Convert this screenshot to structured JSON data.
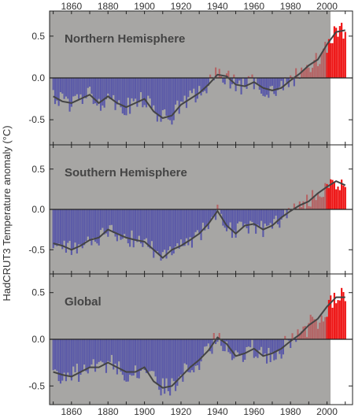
{
  "chart_data": {
    "type": "bar",
    "ylabel": "HadCRUT3 Temperature anomaly (°C)",
    "x_ticks": [
      "1860",
      "1880",
      "1900",
      "1920",
      "1940",
      "1960",
      "1980",
      "2000"
    ],
    "xlim": [
      1848,
      2014
    ],
    "colors": {
      "cold": "#5b5aa8",
      "warm": "#b46566",
      "recent": "#ee1111",
      "plot_bg": "#a7a6a4",
      "smooth": "#444444"
    },
    "panels": [
      {
        "title": "Northern Hemisphere",
        "ylim": [
          -0.8,
          0.8
        ],
        "yticks": [
          "0.5",
          "0.0",
          "-0.5"
        ],
        "ytick_values": [
          0.5,
          0.0,
          -0.5
        ],
        "smooth": [
          [
            1850,
            -0.22
          ],
          [
            1855,
            -0.28
          ],
          [
            1860,
            -0.3
          ],
          [
            1865,
            -0.25
          ],
          [
            1870,
            -0.2
          ],
          [
            1875,
            -0.3
          ],
          [
            1880,
            -0.22
          ],
          [
            1885,
            -0.3
          ],
          [
            1890,
            -0.35
          ],
          [
            1895,
            -0.3
          ],
          [
            1900,
            -0.25
          ],
          [
            1905,
            -0.4
          ],
          [
            1910,
            -0.48
          ],
          [
            1915,
            -0.45
          ],
          [
            1920,
            -0.32
          ],
          [
            1925,
            -0.25
          ],
          [
            1930,
            -0.18
          ],
          [
            1935,
            -0.08
          ],
          [
            1940,
            0.04
          ],
          [
            1945,
            0.02
          ],
          [
            1950,
            -0.08
          ],
          [
            1955,
            -0.1
          ],
          [
            1960,
            -0.05
          ],
          [
            1965,
            -0.12
          ],
          [
            1970,
            -0.15
          ],
          [
            1975,
            -0.12
          ],
          [
            1980,
            -0.03
          ],
          [
            1985,
            0.05
          ],
          [
            1990,
            0.15
          ],
          [
            1995,
            0.22
          ],
          [
            2000,
            0.4
          ],
          [
            2005,
            0.55
          ],
          [
            2010,
            0.57
          ]
        ]
      },
      {
        "title": "Southern Hemisphere",
        "ylim": [
          -0.8,
          0.8
        ],
        "yticks": [
          "0.5",
          "0.0",
          "-0.5"
        ],
        "ytick_values": [
          0.5,
          0.0,
          -0.5
        ],
        "smooth": [
          [
            1850,
            -0.42
          ],
          [
            1855,
            -0.45
          ],
          [
            1860,
            -0.5
          ],
          [
            1865,
            -0.45
          ],
          [
            1870,
            -0.38
          ],
          [
            1875,
            -0.35
          ],
          [
            1880,
            -0.25
          ],
          [
            1885,
            -0.3
          ],
          [
            1890,
            -0.35
          ],
          [
            1895,
            -0.38
          ],
          [
            1900,
            -0.4
          ],
          [
            1905,
            -0.5
          ],
          [
            1910,
            -0.6
          ],
          [
            1915,
            -0.5
          ],
          [
            1920,
            -0.45
          ],
          [
            1925,
            -0.38
          ],
          [
            1930,
            -0.3
          ],
          [
            1935,
            -0.18
          ],
          [
            1940,
            -0.02
          ],
          [
            1945,
            -0.2
          ],
          [
            1950,
            -0.3
          ],
          [
            1955,
            -0.2
          ],
          [
            1960,
            -0.18
          ],
          [
            1965,
            -0.25
          ],
          [
            1970,
            -0.2
          ],
          [
            1975,
            -0.1
          ],
          [
            1980,
            -0.02
          ],
          [
            1985,
            0.05
          ],
          [
            1990,
            0.1
          ],
          [
            1995,
            0.2
          ],
          [
            2000,
            0.28
          ],
          [
            2005,
            0.35
          ],
          [
            2010,
            0.3
          ]
        ]
      },
      {
        "title": "Global",
        "ylim": [
          -0.7,
          0.7
        ],
        "yticks": [
          "0.5",
          "0.0",
          "-0.5"
        ],
        "ytick_values": [
          0.5,
          0.0,
          -0.5
        ],
        "smooth": [
          [
            1850,
            -0.35
          ],
          [
            1855,
            -0.38
          ],
          [
            1860,
            -0.4
          ],
          [
            1865,
            -0.35
          ],
          [
            1870,
            -0.3
          ],
          [
            1875,
            -0.3
          ],
          [
            1880,
            -0.25
          ],
          [
            1885,
            -0.3
          ],
          [
            1890,
            -0.35
          ],
          [
            1895,
            -0.35
          ],
          [
            1900,
            -0.3
          ],
          [
            1905,
            -0.45
          ],
          [
            1910,
            -0.52
          ],
          [
            1915,
            -0.5
          ],
          [
            1920,
            -0.4
          ],
          [
            1925,
            -0.3
          ],
          [
            1930,
            -0.22
          ],
          [
            1935,
            -0.12
          ],
          [
            1940,
            0.02
          ],
          [
            1945,
            -0.05
          ],
          [
            1950,
            -0.18
          ],
          [
            1955,
            -0.15
          ],
          [
            1960,
            -0.1
          ],
          [
            1965,
            -0.18
          ],
          [
            1970,
            -0.15
          ],
          [
            1975,
            -0.1
          ],
          [
            1980,
            -0.02
          ],
          [
            1985,
            0.05
          ],
          [
            1990,
            0.15
          ],
          [
            1995,
            0.22
          ],
          [
            2000,
            0.35
          ],
          [
            2005,
            0.45
          ],
          [
            2010,
            0.45
          ]
        ]
      }
    ]
  }
}
